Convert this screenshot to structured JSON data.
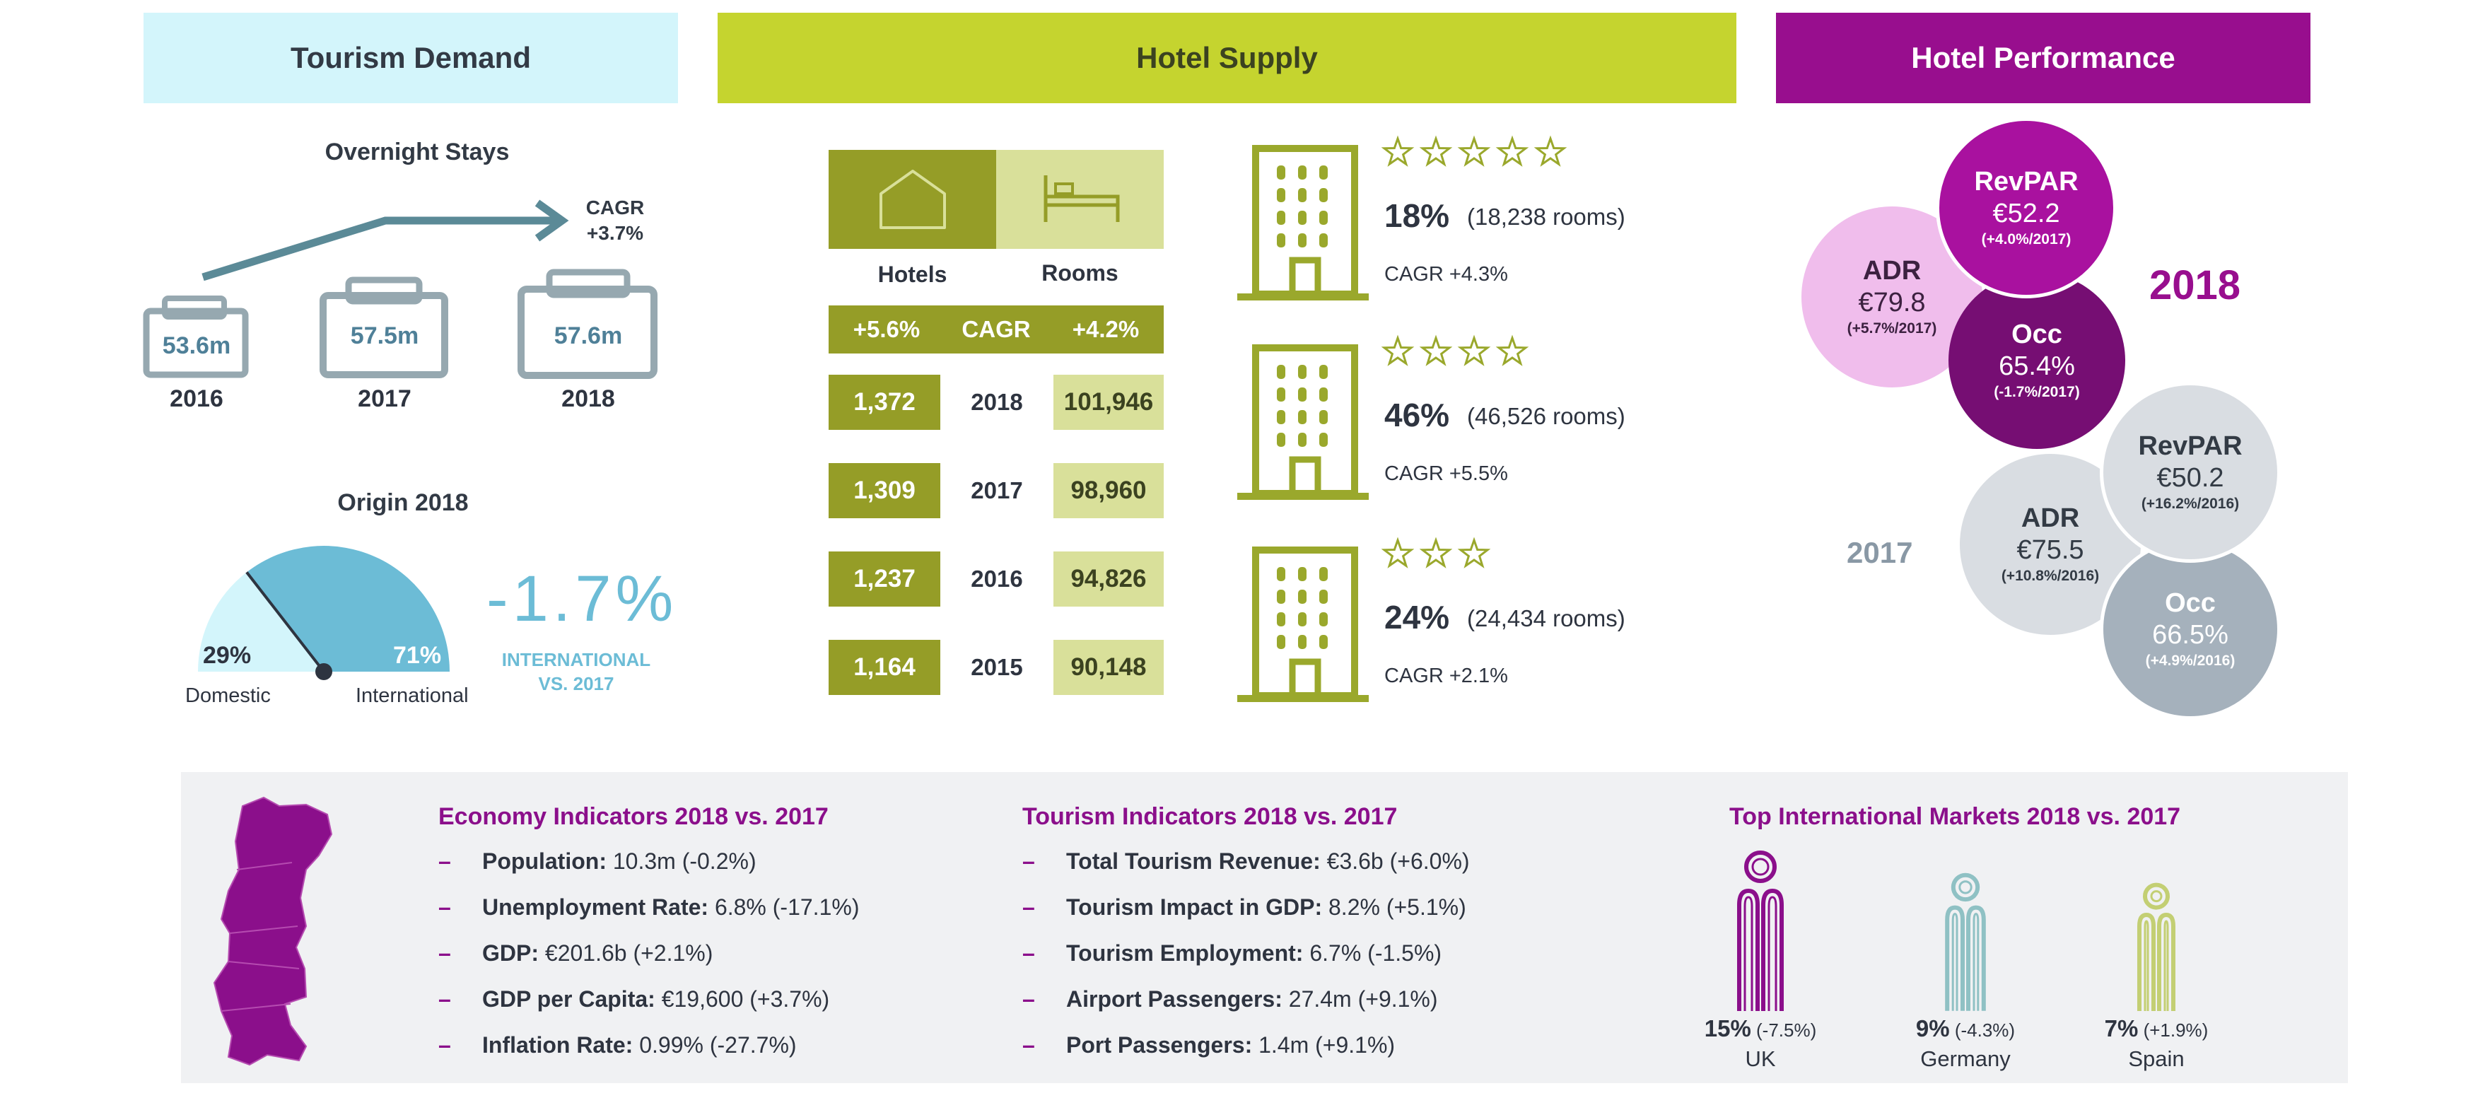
{
  "headers": {
    "demand": "Tourism Demand",
    "supply": "Hotel Supply",
    "performance": "Hotel Performance"
  },
  "overnight": {
    "title": "Overnight Stays",
    "cagr_label": "CAGR",
    "cagr_value": "+3.7%",
    "years": [
      {
        "value": "53.6m",
        "year": "2016"
      },
      {
        "value": "57.5m",
        "year": "2017"
      },
      {
        "value": "57.6m",
        "year": "2018"
      }
    ]
  },
  "origin": {
    "title": "Origin 2018",
    "domestic_pct": "29%",
    "international_pct": "71%",
    "domestic_label": "Domestic",
    "international_label": "International",
    "change": "-1.7%",
    "change_label_1": "INTERNATIONAL",
    "change_label_2": "VS. 2017",
    "international_share": 0.71
  },
  "supply": {
    "hotels_label": "Hotels",
    "rooms_label": "Rooms",
    "hotels_cagr": "+5.6%",
    "cagr_label": "CAGR",
    "rooms_cagr": "+4.2%",
    "rows": [
      {
        "hotels": "1,372",
        "year": "2018",
        "rooms": "101,946"
      },
      {
        "hotels": "1,309",
        "year": "2017",
        "rooms": "98,960"
      },
      {
        "hotels": "1,237",
        "year": "2016",
        "rooms": "94,826"
      },
      {
        "hotels": "1,164",
        "year": "2015",
        "rooms": "90,148"
      }
    ],
    "categories": [
      {
        "stars": 5,
        "pct": "18%",
        "rooms": "(18,238 rooms)",
        "cagr": "CAGR +4.3%"
      },
      {
        "stars": 4,
        "pct": "46%",
        "rooms": "(46,526 rooms)",
        "cagr": "CAGR +5.5%"
      },
      {
        "stars": 3,
        "pct": "24%",
        "rooms": "(24,434 rooms)",
        "cagr": "CAGR +2.1%"
      }
    ]
  },
  "performance": {
    "y2018": "2018",
    "y2017": "2017",
    "current": {
      "revpar": {
        "t": "RevPAR",
        "v": "€52.2",
        "c": "(+4.0%/2017)"
      },
      "adr": {
        "t": "ADR",
        "v": "€79.8",
        "c": "(+5.7%/2017)"
      },
      "occ": {
        "t": "Occ",
        "v": "65.4%",
        "c": "(-1.7%/2017)"
      }
    },
    "previous": {
      "revpar": {
        "t": "RevPAR",
        "v": "€50.2",
        "c": "(+16.2%/2016)"
      },
      "adr": {
        "t": "ADR",
        "v": "€75.5",
        "c": "(+10.8%/2016)"
      },
      "occ": {
        "t": "Occ",
        "v": "66.5%",
        "c": "(+4.9%/2016)"
      }
    }
  },
  "economy": {
    "title": "Economy Indicators 2018 vs. 2017",
    "items": [
      {
        "label": "Population:",
        "value": " 10.3m (-0.2%)"
      },
      {
        "label": "Unemployment Rate:",
        "value": " 6.8% (-17.1%)"
      },
      {
        "label": "GDP:",
        "value": " €201.6b (+2.1%)"
      },
      {
        "label": "GDP per Capita:",
        "value": " €19,600 (+3.7%)"
      },
      {
        "label": "Inflation Rate:",
        "value": " 0.99% (-27.7%)"
      }
    ]
  },
  "tourism": {
    "title": "Tourism Indicators 2018 vs. 2017",
    "items": [
      {
        "label": "Total Tourism Revenue:",
        "value": " €3.6b (+6.0%)"
      },
      {
        "label": "Tourism Impact in GDP:",
        "value": " 8.2% (+5.1%)"
      },
      {
        "label": "Tourism Employment:",
        "value": " 6.7% (-1.5%)"
      },
      {
        "label": "Airport Passengers:",
        "value": " 27.4m (+9.1%)"
      },
      {
        "label": "Port Passengers:",
        "value": " 1.4m (+9.1%)"
      }
    ]
  },
  "markets": {
    "title": "Top International Markets 2018 vs. 2017",
    "items": [
      {
        "pct": "15%",
        "chg": " (-7.5%)",
        "name": "UK",
        "color": "#8b0f8b"
      },
      {
        "pct": "9%",
        "chg": " (-4.3%)",
        "name": "Germany",
        "color": "#8fc1c4"
      },
      {
        "pct": "7%",
        "chg": " (+1.9%)",
        "name": "Spain",
        "color": "#c3cf73"
      }
    ]
  },
  "colors": {
    "demand_header_bg": "#d3f5fb",
    "supply_header_bg": "#c5d42f",
    "performance_header_bg": "#980e8e",
    "olive_dark": "#959d27",
    "olive_light": "#d9e09a",
    "teal": "#5fa6bd",
    "purple": "#8b0f8b",
    "grey_panel": "#f0f1f3"
  }
}
